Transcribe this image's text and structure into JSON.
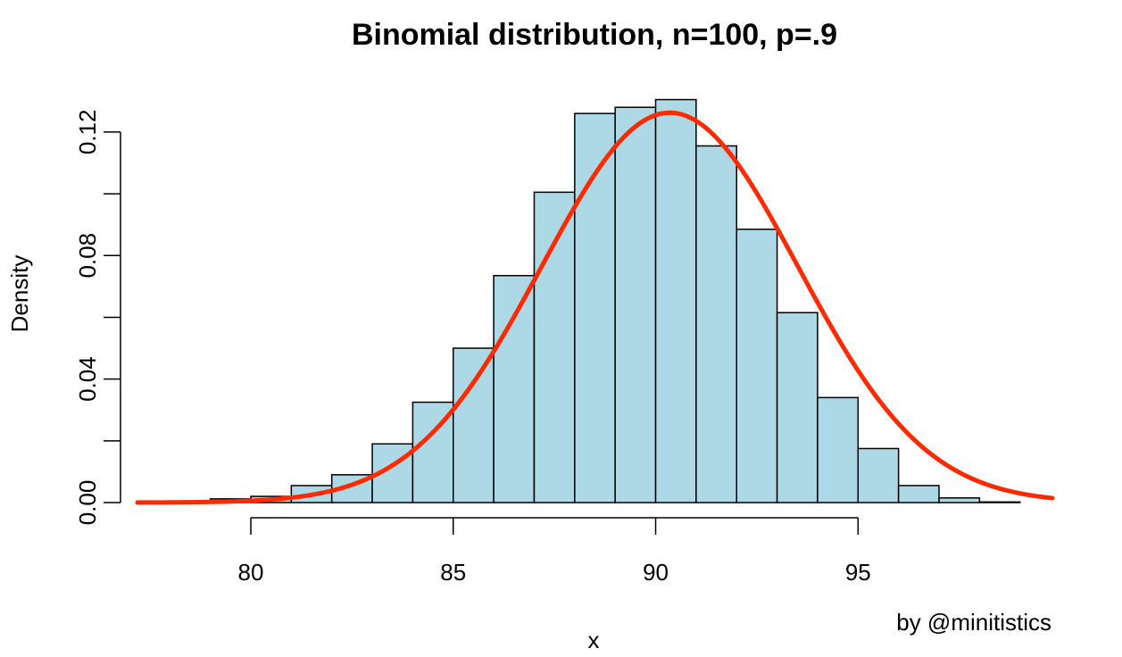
{
  "chart_data": {
    "type": "bar",
    "title": "Binomial distribution, n=100, p=.9",
    "xlabel": "x",
    "ylabel": "Density",
    "credit": "by @minitistics",
    "xlim": [
      77.2,
      99.8
    ],
    "ylim": [
      0,
      0.135
    ],
    "x_ticks": [
      80,
      85,
      90,
      95
    ],
    "x_tick_labels": [
      "80",
      "85",
      "90",
      "95"
    ],
    "y_ticks": [
      0,
      0.02,
      0.04,
      0.06,
      0.08,
      0.1,
      0.12
    ],
    "y_tick_labels": [
      "0.00",
      "",
      "0.04",
      "",
      "0.08",
      "",
      "0.12"
    ],
    "bin_edges": [
      77,
      78,
      79,
      80,
      81,
      82,
      83,
      84,
      85,
      86,
      87,
      88,
      89,
      90,
      91,
      92,
      93,
      94,
      95,
      96,
      97,
      98,
      99
    ],
    "values": [
      0.0,
      0.0002,
      0.0012,
      0.002,
      0.0055,
      0.009,
      0.019,
      0.0325,
      0.05,
      0.0735,
      0.1005,
      0.126,
      0.128,
      0.1305,
      0.1155,
      0.0885,
      0.0615,
      0.034,
      0.0175,
      0.0055,
      0.0015,
      0.0002
    ],
    "bar_fill": "#add8e6",
    "curve": {
      "type": "normal-density",
      "mean": 90.35,
      "sd": 3.16,
      "color": "#ff2a00",
      "x_range": [
        77.2,
        99.8
      ]
    }
  }
}
